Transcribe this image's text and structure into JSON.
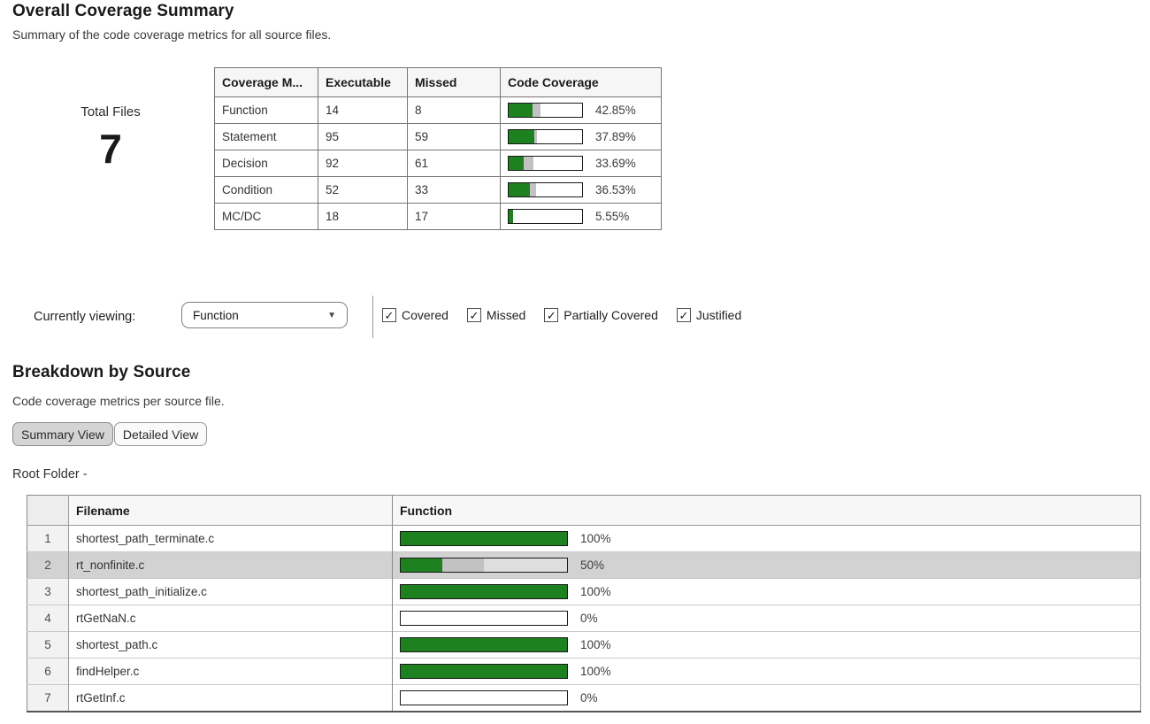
{
  "colors": {
    "covered_green": "#1e8120",
    "partial_gray": "#c2c2c2",
    "selected_row_bg": "#d2d2d2",
    "bar_border": "#1a1a1a"
  },
  "overall": {
    "title": "Overall Coverage Summary",
    "subtitle": "Summary of the code coverage metrics for all source files.",
    "total_files_label": "Total Files",
    "total_files_value": "7",
    "table": {
      "headers": [
        "Coverage M...",
        "Executable",
        "Missed",
        "Code Coverage"
      ],
      "rows": [
        {
          "metric": "Function",
          "executable": "14",
          "missed": "8",
          "pct_label": "42.85%",
          "covered_pct": 33,
          "partial_pct": 10
        },
        {
          "metric": "Statement",
          "executable": "95",
          "missed": "59",
          "pct_label": "37.89%",
          "covered_pct": 35,
          "partial_pct": 3
        },
        {
          "metric": "Decision",
          "executable": "92",
          "missed": "61",
          "pct_label": "33.69%",
          "covered_pct": 20,
          "partial_pct": 14
        },
        {
          "metric": "Condition",
          "executable": "52",
          "missed": "33",
          "pct_label": "36.53%",
          "covered_pct": 29,
          "partial_pct": 8
        },
        {
          "metric": "MC/DC",
          "executable": "18",
          "missed": "17",
          "pct_label": "5.55%",
          "covered_pct": 5.5,
          "partial_pct": 0
        }
      ]
    }
  },
  "filter_bar": {
    "label": "Currently viewing:",
    "dropdown_value": "Function",
    "dropdown_caret": "▼",
    "checkboxes": [
      {
        "label": "Covered",
        "checked": true
      },
      {
        "label": "Missed",
        "checked": true
      },
      {
        "label": "Partially Covered",
        "checked": true
      },
      {
        "label": "Justified",
        "checked": true
      }
    ],
    "check_glyph": "✓"
  },
  "breakdown": {
    "title": "Breakdown by Source",
    "subtitle": "Code coverage metrics per source file.",
    "view_buttons": [
      {
        "label": "Summary View",
        "active": true
      },
      {
        "label": "Detailed View",
        "active": false
      }
    ],
    "root_label": "Root Folder -",
    "table": {
      "headers": [
        "",
        "Filename",
        "Function"
      ],
      "rows": [
        {
          "num": "1",
          "filename": "shortest_path_terminate.c",
          "pct_label": "100%",
          "covered_pct": 100,
          "partial_pct": 0,
          "selected": false
        },
        {
          "num": "2",
          "filename": "rt_nonfinite.c",
          "pct_label": "50%",
          "covered_pct": 25,
          "partial_pct": 25,
          "selected": true
        },
        {
          "num": "3",
          "filename": "shortest_path_initialize.c",
          "pct_label": "100%",
          "covered_pct": 100,
          "partial_pct": 0,
          "selected": false
        },
        {
          "num": "4",
          "filename": "rtGetNaN.c",
          "pct_label": "0%",
          "covered_pct": 0,
          "partial_pct": 0,
          "selected": false
        },
        {
          "num": "5",
          "filename": "shortest_path.c",
          "pct_label": "100%",
          "covered_pct": 100,
          "partial_pct": 0,
          "selected": false
        },
        {
          "num": "6",
          "filename": "findHelper.c",
          "pct_label": "100%",
          "covered_pct": 100,
          "partial_pct": 0,
          "selected": false
        },
        {
          "num": "7",
          "filename": "rtGetInf.c",
          "pct_label": "0%",
          "covered_pct": 0,
          "partial_pct": 0,
          "selected": false
        }
      ]
    }
  }
}
